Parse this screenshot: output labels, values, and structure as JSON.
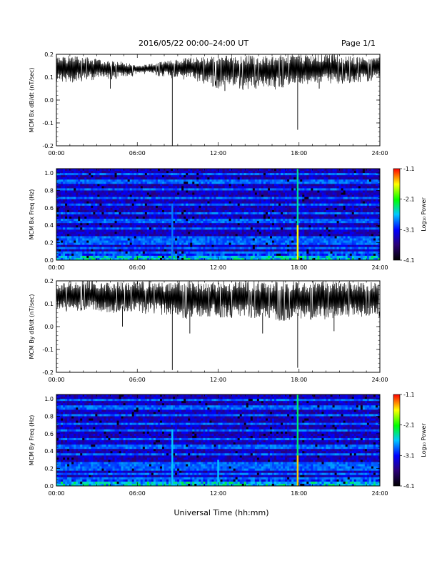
{
  "header": {
    "title": "2016/05/22  00:00–24:00 UT",
    "page": "Page 1/1"
  },
  "x_axis_title": "Universal Time (hh:mm)",
  "colors": {
    "trace": "#000000",
    "colormap": [
      "#000000",
      "#2a0078",
      "#0000ff",
      "#00c8ff",
      "#00ff00",
      "#ffff00",
      "#ff0000"
    ]
  },
  "chart_data": [
    {
      "type": "line",
      "ylabel": "MCM Bx dB/dt (nT/sec)",
      "x_ticks": [
        "00:00",
        "06:00",
        "12:00",
        "18:00",
        "24:00"
      ],
      "xlim_hours": [
        0,
        24
      ],
      "ylim": [
        -0.2,
        0.2
      ],
      "y_ticks": [
        "0.2",
        "0.1",
        "0.0",
        "-0.1",
        "-0.2"
      ],
      "y_tick_values": [
        0.2,
        0.1,
        0.0,
        -0.1,
        -0.2
      ],
      "series": [
        {
          "x_hours": [
            0,
            1,
            2,
            3,
            4,
            5,
            6,
            7,
            8,
            9,
            10,
            11,
            12,
            13,
            14,
            15,
            16,
            17,
            18,
            19,
            20,
            21,
            22,
            23,
            24
          ],
          "upper": [
            0.19,
            0.2,
            0.19,
            0.18,
            0.17,
            0.17,
            0.15,
            0.16,
            0.17,
            0.18,
            0.19,
            0.19,
            0.2,
            0.2,
            0.2,
            0.19,
            0.2,
            0.2,
            0.2,
            0.2,
            0.2,
            0.2,
            0.19,
            0.19,
            0.19
          ],
          "lower": [
            0.09,
            0.08,
            0.09,
            0.1,
            0.1,
            0.1,
            0.12,
            0.12,
            0.11,
            0.1,
            0.09,
            0.08,
            0.06,
            0.07,
            0.05,
            0.07,
            0.05,
            0.07,
            0.07,
            0.07,
            0.08,
            0.08,
            0.08,
            0.09,
            0.1
          ]
        }
      ],
      "spikes": [
        {
          "hour": 4.0,
          "value": 0.05
        },
        {
          "hour": 8.6,
          "value": -0.2
        },
        {
          "hour": 12.5,
          "value": 0.04
        },
        {
          "hour": 14.8,
          "value": 0.05
        },
        {
          "hour": 17.9,
          "value": -0.13
        },
        {
          "hour": 19.5,
          "value": 0.05
        }
      ]
    },
    {
      "type": "heatmap",
      "ylabel": "MCM Bx Freq (Hz)",
      "x_ticks": [
        "00:00",
        "06:00",
        "12:00",
        "18:00",
        "24:00"
      ],
      "xlim_hours": [
        0,
        24
      ],
      "ylim": [
        0,
        1.05
      ],
      "y_ticks": [
        "1.0",
        "0.8",
        "0.6",
        "0.4",
        "0.2",
        "0.0"
      ],
      "y_tick_values": [
        1.0,
        0.8,
        0.6,
        0.4,
        0.2,
        0.0
      ],
      "colorbar": {
        "label": "Log10 Power",
        "ticks": [
          "-1.1",
          "-2.1",
          "-3.1",
          "-4.1"
        ],
        "range": [
          -4.1,
          -1.1
        ]
      },
      "bands_hz": [
        0.0,
        0.045,
        0.09,
        0.135,
        0.18,
        0.225,
        0.27,
        0.36,
        0.45,
        0.54,
        0.63,
        0.72,
        0.81,
        0.9,
        0.99
      ],
      "hotspots": [
        {
          "hour": 8.6,
          "fmax_hz": 0.25,
          "level": -1.4
        },
        {
          "hour": 8.6,
          "fmax_hz": 0.65,
          "level": -2.8
        },
        {
          "hour": 17.9,
          "fmax_hz": 1.05,
          "level": -2.4
        },
        {
          "hour": 17.9,
          "fmax_hz": 0.4,
          "level": -1.6
        }
      ]
    },
    {
      "type": "line",
      "ylabel": "MCM By dB/dt (nT/sec)",
      "x_ticks": [
        "00:00",
        "06:00",
        "12:00",
        "18:00",
        "24:00"
      ],
      "xlim_hours": [
        0,
        24
      ],
      "ylim": [
        -0.2,
        0.2
      ],
      "y_ticks": [
        "0.2",
        "0.1",
        "0.0",
        "-0.1",
        "-0.2"
      ],
      "y_tick_values": [
        0.2,
        0.1,
        0.0,
        -0.1,
        -0.2
      ],
      "series": [
        {
          "x_hours": [
            0,
            1,
            2,
            3,
            4,
            5,
            6,
            7,
            8,
            9,
            10,
            11,
            12,
            13,
            14,
            15,
            16,
            17,
            18,
            19,
            20,
            21,
            22,
            23,
            24
          ],
          "upper": [
            0.19,
            0.2,
            0.2,
            0.2,
            0.19,
            0.2,
            0.2,
            0.2,
            0.19,
            0.2,
            0.2,
            0.2,
            0.2,
            0.2,
            0.2,
            0.2,
            0.2,
            0.2,
            0.2,
            0.2,
            0.2,
            0.2,
            0.2,
            0.2,
            0.2
          ],
          "lower": [
            0.08,
            0.07,
            0.08,
            0.07,
            0.06,
            0.07,
            0.07,
            0.06,
            0.06,
            0.05,
            0.04,
            0.05,
            0.05,
            0.04,
            0.05,
            0.04,
            0.04,
            0.03,
            0.04,
            0.04,
            0.04,
            0.05,
            0.05,
            0.05,
            0.05
          ]
        }
      ],
      "spikes": [
        {
          "hour": 4.9,
          "value": 0.0
        },
        {
          "hour": 8.6,
          "value": -0.19
        },
        {
          "hour": 9.9,
          "value": -0.03
        },
        {
          "hour": 15.3,
          "value": -0.03
        },
        {
          "hour": 17.9,
          "value": -0.18
        },
        {
          "hour": 20.6,
          "value": -0.02
        }
      ]
    },
    {
      "type": "heatmap",
      "ylabel": "MCM By Freq (Hz)",
      "x_ticks": [
        "00:00",
        "06:00",
        "12:00",
        "18:00",
        "24:00"
      ],
      "xlim_hours": [
        0,
        24
      ],
      "ylim": [
        0,
        1.05
      ],
      "y_ticks": [
        "1.0",
        "0.8",
        "0.6",
        "0.4",
        "0.2",
        "0.0"
      ],
      "y_tick_values": [
        1.0,
        0.8,
        0.6,
        0.4,
        0.2,
        0.0
      ],
      "colorbar": {
        "label": "Log10 Power",
        "ticks": [
          "-1.1",
          "-2.1",
          "-3.1",
          "-4.1"
        ],
        "range": [
          -4.1,
          -1.1
        ]
      },
      "bands_hz": [
        0.0,
        0.045,
        0.09,
        0.135,
        0.18,
        0.225,
        0.27,
        0.36,
        0.45,
        0.54,
        0.63,
        0.72,
        0.81,
        0.9,
        0.99
      ],
      "hotspots": [
        {
          "hour": 8.6,
          "fmax_hz": 0.25,
          "level": -1.4
        },
        {
          "hour": 8.6,
          "fmax_hz": 0.65,
          "level": -2.6
        },
        {
          "hour": 12.0,
          "fmax_hz": 0.3,
          "level": -2.6
        },
        {
          "hour": 17.9,
          "fmax_hz": 1.05,
          "level": -2.3
        },
        {
          "hour": 17.9,
          "fmax_hz": 0.35,
          "level": -1.5
        }
      ]
    }
  ]
}
